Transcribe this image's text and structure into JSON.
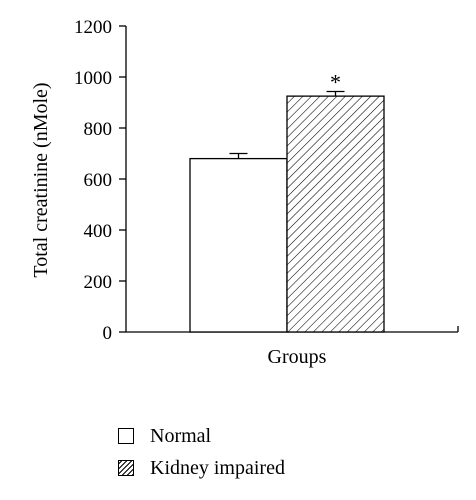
{
  "chart_data": {
    "type": "bar",
    "categories": [
      "Normal",
      "Kidney impaired"
    ],
    "values": [
      680,
      925
    ],
    "errors": [
      20,
      18
    ],
    "significance": [
      "",
      "*"
    ],
    "xlabel": "Groups",
    "ylabel": "Total creatinine (nMole)",
    "ylim": [
      0,
      1200
    ],
    "yticks": [
      0,
      200,
      400,
      600,
      800,
      1000,
      1200
    ],
    "legend": {
      "placement": "bottom-left",
      "entries": [
        "Normal",
        "Kidney impaired"
      ]
    },
    "fills": [
      "white",
      "hatched"
    ],
    "grid": false
  }
}
